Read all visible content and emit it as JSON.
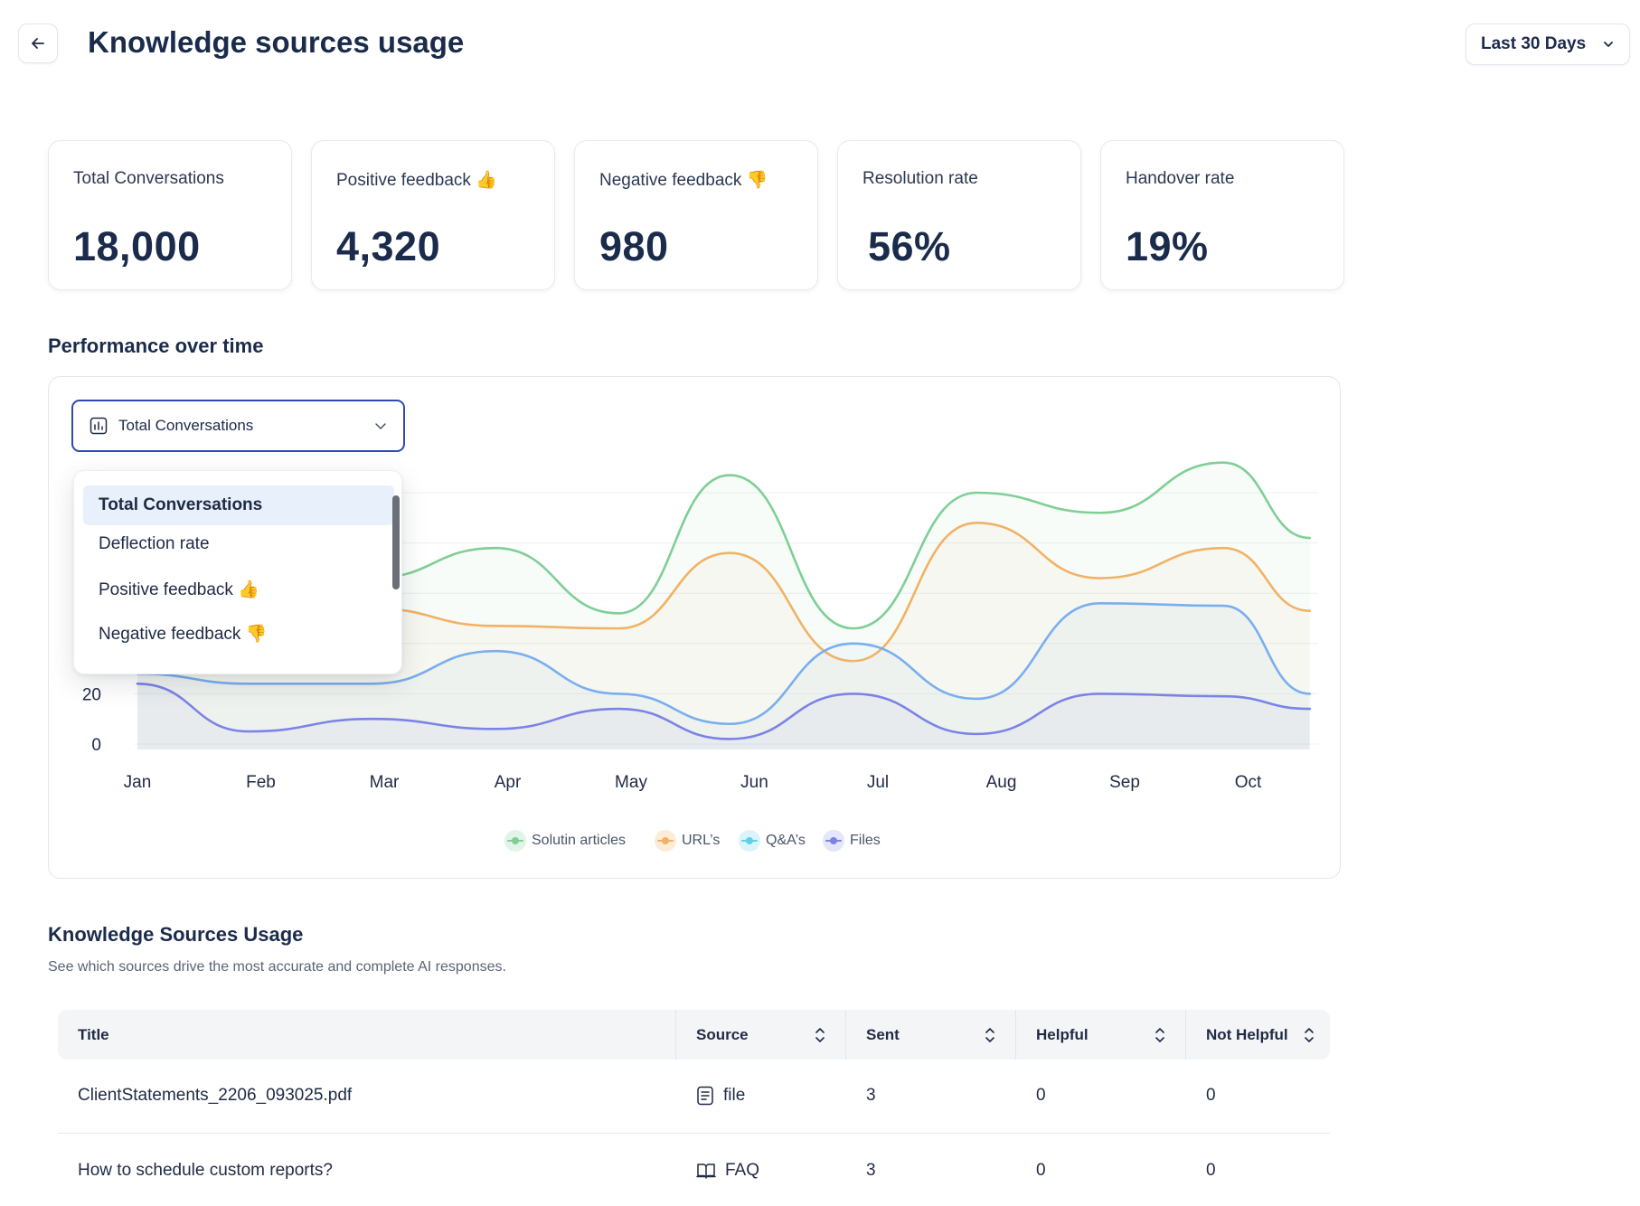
{
  "header": {
    "title": "Knowledge sources usage",
    "date_range": "Last 30 Days"
  },
  "stats": [
    {
      "label": "Total Conversations",
      "value": "18,000"
    },
    {
      "label": "Positive feedback 👍",
      "value": "4,320"
    },
    {
      "label": "Negative feedback 👎",
      "value": "980"
    },
    {
      "label": "Resolution rate",
      "value": "56%"
    },
    {
      "label": "Handover rate",
      "value": "19%"
    }
  ],
  "performance": {
    "title": "Performance over time",
    "metric_select": "Total Conversations",
    "metric_options": [
      "Total Conversations",
      "Deflection rate",
      "Positive feedback 👍",
      "Negative feedback 👎"
    ],
    "selected_option": "Total Conversations"
  },
  "chart_data": {
    "type": "area",
    "x": [
      "Jan",
      "Feb",
      "Mar",
      "Apr",
      "May",
      "Jun",
      "Jul",
      "Aug",
      "Sep",
      "Oct"
    ],
    "y_ticks": [
      "0",
      "20"
    ],
    "ylim": [
      0,
      100
    ],
    "grid": true,
    "legend": "bottom-center",
    "series": [
      {
        "name": "Solutin articles",
        "color": "#7fcf95",
        "points": [
          [
            0.0,
            60
          ],
          [
            0.9,
            64
          ],
          [
            1.9,
            66
          ],
          [
            2.9,
            78
          ],
          [
            3.9,
            52
          ],
          [
            4.8,
            107
          ],
          [
            5.8,
            46
          ],
          [
            6.8,
            100
          ],
          [
            7.8,
            92
          ],
          [
            8.8,
            112
          ],
          [
            9.5,
            82
          ]
        ]
      },
      {
        "name": "URL's",
        "color": "#f2b265",
        "points": [
          [
            0.0,
            48
          ],
          [
            0.9,
            50
          ],
          [
            1.9,
            54
          ],
          [
            2.9,
            47
          ],
          [
            3.9,
            46
          ],
          [
            4.8,
            76
          ],
          [
            5.8,
            33
          ],
          [
            6.8,
            88
          ],
          [
            7.8,
            66
          ],
          [
            8.8,
            78
          ],
          [
            9.5,
            53
          ]
        ]
      },
      {
        "name": "Q&A's",
        "color": "#79aef0",
        "points": [
          [
            0.0,
            28
          ],
          [
            0.9,
            24
          ],
          [
            1.9,
            24
          ],
          [
            2.9,
            37
          ],
          [
            3.9,
            20
          ],
          [
            4.8,
            8
          ],
          [
            5.8,
            40
          ],
          [
            6.8,
            18
          ],
          [
            7.8,
            56
          ],
          [
            8.8,
            55
          ],
          [
            9.5,
            20
          ]
        ]
      },
      {
        "name": "Files",
        "color": "#7b83e6",
        "points": [
          [
            0.0,
            24
          ],
          [
            0.9,
            5
          ],
          [
            1.9,
            10
          ],
          [
            2.9,
            6
          ],
          [
            3.9,
            14
          ],
          [
            4.8,
            2
          ],
          [
            5.8,
            20
          ],
          [
            6.8,
            4
          ],
          [
            7.8,
            20
          ],
          [
            8.8,
            19
          ],
          [
            9.5,
            14
          ]
        ]
      }
    ]
  },
  "legend": [
    {
      "label": "Solutin articles",
      "color": "#7fcf95",
      "halo": "#e2f4e7"
    },
    {
      "label": "URL’s",
      "color": "#f2b265",
      "halo": "#fdecd8"
    },
    {
      "label": "Q&A’s",
      "color": "#5fd0e8",
      "halo": "#dbf4fa"
    },
    {
      "label": "Files",
      "color": "#7b83e6",
      "halo": "#e4e6fb"
    }
  ],
  "sources": {
    "title": "Knowledge Sources Usage",
    "subtitle": "See which sources drive the most accurate and complete AI responses.",
    "columns": [
      "Title",
      "Source",
      "Sent",
      "Helpful",
      "Not Helpful"
    ],
    "rows": [
      {
        "title": "ClientStatements_2206_093025.pdf",
        "source": "file",
        "source_icon": "document-icon",
        "sent": "3",
        "helpful": "0",
        "not_helpful": "0"
      },
      {
        "title": "How to schedule custom reports?",
        "source": "FAQ",
        "source_icon": "book-icon",
        "sent": "3",
        "helpful": "0",
        "not_helpful": "0"
      }
    ]
  }
}
